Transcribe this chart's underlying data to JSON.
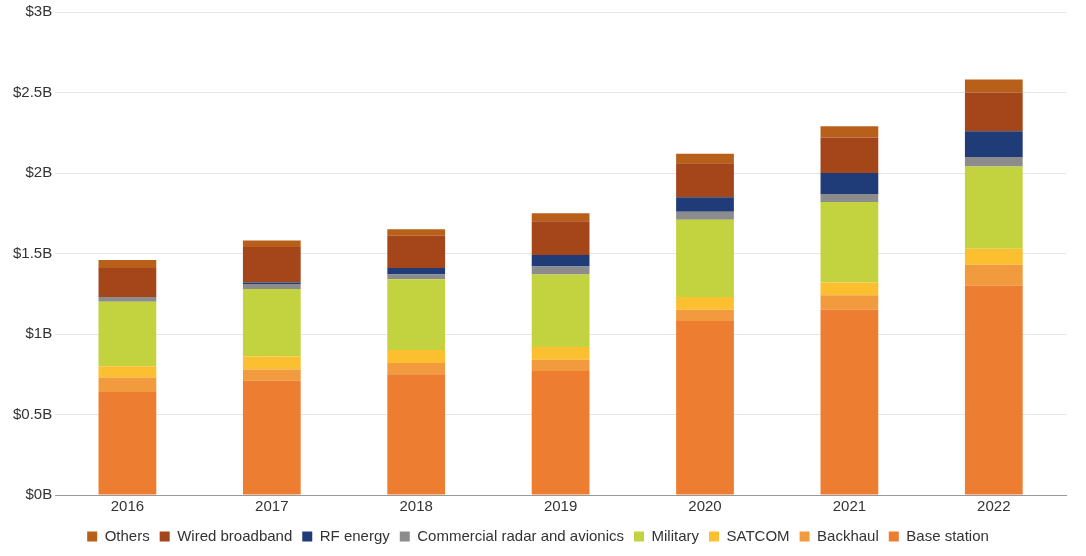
{
  "chart_data": {
    "type": "bar",
    "stacked": true,
    "categories": [
      "2016",
      "2017",
      "2018",
      "2019",
      "2020",
      "2021",
      "2022"
    ],
    "series": [
      {
        "name": "Base station",
        "color": "#ed7d31",
        "values": [
          0.64,
          0.71,
          0.75,
          0.77,
          1.08,
          1.15,
          1.3
        ]
      },
      {
        "name": "Backhaul",
        "color": "#f29a3e",
        "values": [
          0.09,
          0.07,
          0.07,
          0.07,
          0.07,
          0.09,
          0.13
        ]
      },
      {
        "name": "SATCOM",
        "color": "#fcbf2f",
        "values": [
          0.07,
          0.08,
          0.08,
          0.08,
          0.08,
          0.08,
          0.1
        ]
      },
      {
        "name": "Military",
        "color": "#c3d23f",
        "values": [
          0.4,
          0.42,
          0.44,
          0.45,
          0.48,
          0.5,
          0.51
        ]
      },
      {
        "name": "Commercial radar and avionics",
        "color": "#8c8c8c",
        "values": [
          0.03,
          0.03,
          0.03,
          0.05,
          0.05,
          0.05,
          0.06
        ]
      },
      {
        "name": "RF energy",
        "color": "#1f3c78",
        "values": [
          0,
          0.01,
          0.04,
          0.07,
          0.09,
          0.13,
          0.16
        ]
      },
      {
        "name": "Wired broadband",
        "color": "#a5451a",
        "values": [
          0.18,
          0.22,
          0.2,
          0.21,
          0.21,
          0.22,
          0.24
        ]
      },
      {
        "name": "Others",
        "color": "#b8601a",
        "values": [
          0.05,
          0.04,
          0.04,
          0.05,
          0.06,
          0.07,
          0.08
        ]
      }
    ],
    "ylim": [
      0,
      3
    ],
    "yticks": [
      {
        "value": 0,
        "label": "$0B"
      },
      {
        "value": 0.5,
        "label": "$0.5B"
      },
      {
        "value": 1,
        "label": "$1B"
      },
      {
        "value": 1.5,
        "label": "$1.5B"
      },
      {
        "value": 2,
        "label": "$2B"
      },
      {
        "value": 2.5,
        "label": "$2.5B"
      },
      {
        "value": 3,
        "label": "$3B"
      }
    ],
    "grid": "y",
    "legend": "bottom"
  }
}
